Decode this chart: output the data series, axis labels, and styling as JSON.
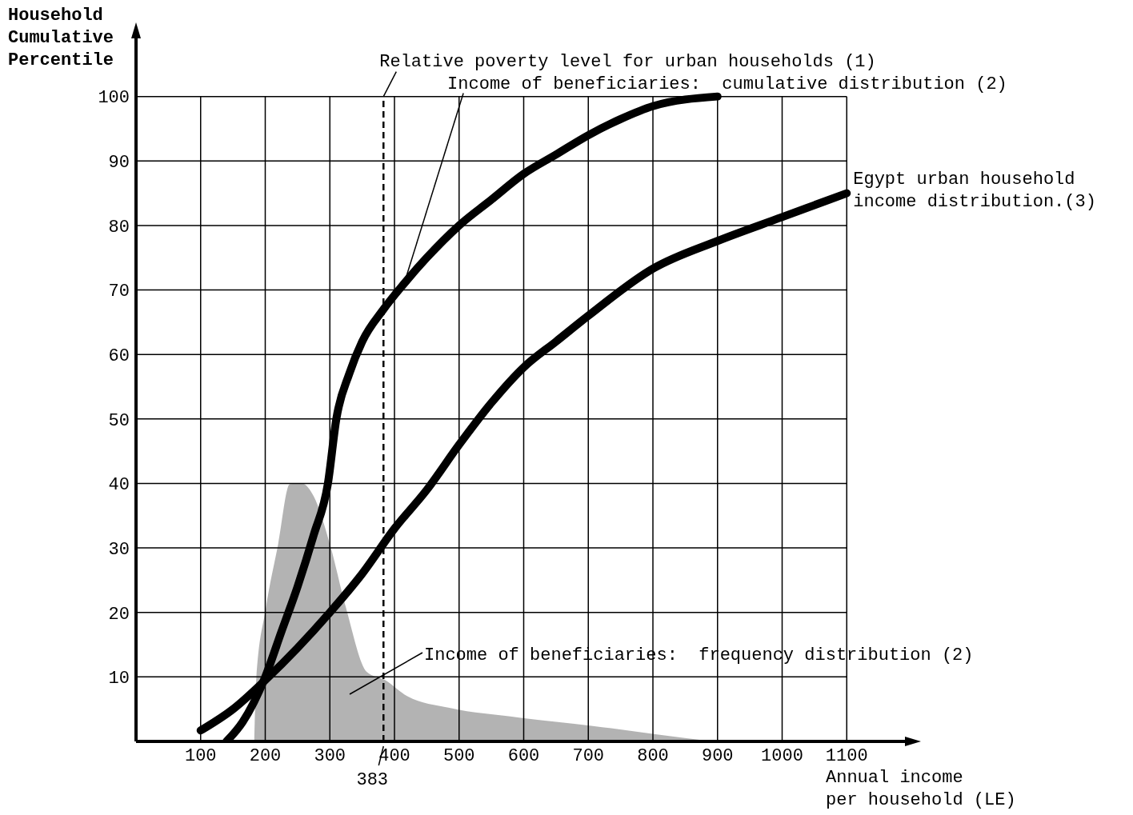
{
  "chart_data": {
    "type": "line",
    "xlabel": "Annual income\nper household (LE)",
    "ylabel": "Household\nCumulative\nPercentile",
    "xlim": [
      0,
      1200
    ],
    "ylim": [
      0,
      110
    ],
    "xticks": [
      100,
      200,
      300,
      400,
      500,
      600,
      700,
      800,
      900,
      1000,
      1100
    ],
    "yticks": [
      10,
      20,
      30,
      40,
      50,
      60,
      70,
      80,
      90,
      100
    ],
    "grid": true,
    "legend": false,
    "marker": "none",
    "line_style": "solid",
    "series": [
      {
        "color": "#000000",
        "x": [
          140,
          165,
          200,
          225,
          250,
          275,
          297,
          310,
          330,
          350,
          383,
          415,
          450,
          500,
          550,
          600,
          650,
          700,
          750,
          800,
          900
        ],
        "values": [
          0,
          3,
          10,
          17,
          24,
          32,
          40,
          50,
          57,
          62,
          67,
          71,
          75,
          80,
          84,
          88,
          91,
          94,
          96.5,
          98.5,
          100
        ]
      },
      {
        "color": "#000000",
        "x": [
          100,
          150,
          200,
          250,
          300,
          350,
          400,
          450,
          500,
          550,
          600,
          650,
          700,
          800,
          900,
          1000,
          1100
        ],
        "values": [
          1.7,
          5,
          9.5,
          14.5,
          20,
          26,
          33,
          39,
          46,
          52.5,
          58,
          62,
          66,
          73.3,
          77.6,
          81.3,
          85
        ]
      },
      {
        "type": "area",
        "color": "#a6a6a6",
        "x": [
          183,
          186,
          201,
          220,
          238,
          257,
          275,
          300,
          325,
          357,
          386,
          420,
          485,
          593,
          707,
          806,
          893
        ],
        "values": [
          0,
          9.5,
          20.7,
          30.6,
          39.9,
          40,
          38,
          30.6,
          20.7,
          10.8,
          9.5,
          7,
          5.2,
          3.7,
          2.4,
          1.1,
          0
        ]
      }
    ],
    "ref_lines": [
      {
        "axis": "x",
        "value": 383,
        "label": "383",
        "line_style": "dashed",
        "color": "#000000"
      }
    ],
    "annotations": [
      {
        "text": "Relative poverty level for urban households (1)",
        "x": 383,
        "y": 100
      },
      {
        "text": "Income of beneficiaries:  cumulative distribution (2)",
        "x": 415,
        "y": 71
      },
      {
        "text": "Egypt urban household\nincome distribution.(3)",
        "x": 1100,
        "y": 85
      },
      "Income of beneficiaries:  frequency distribution (2)"
    ]
  }
}
